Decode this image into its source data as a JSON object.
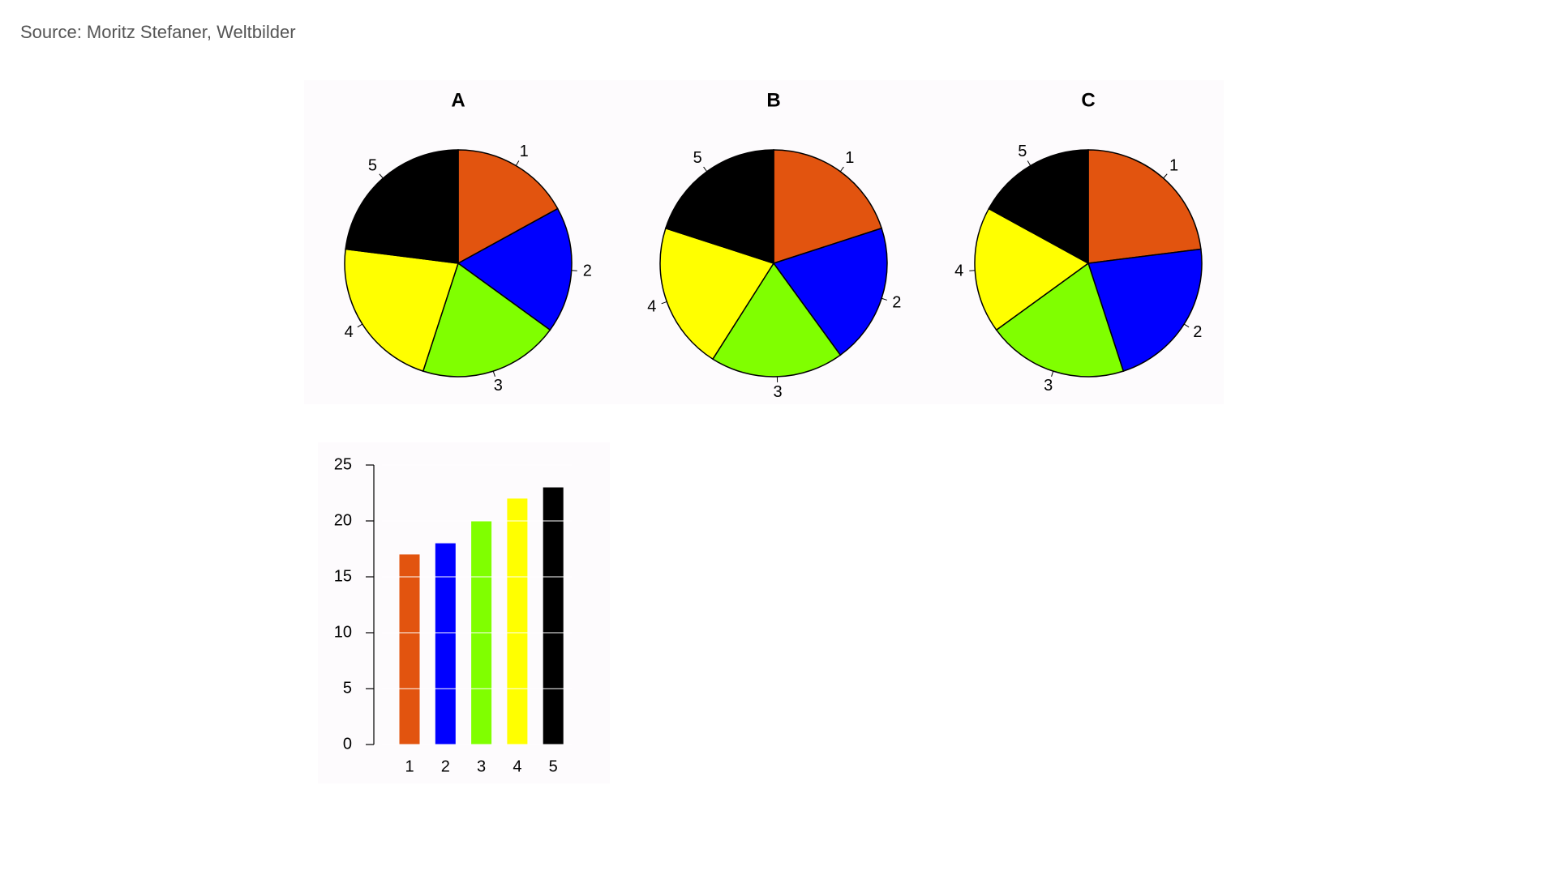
{
  "source": "Source: Moritz Stefaner, Weltbilder",
  "chart_data": [
    {
      "type": "pie",
      "title": "A",
      "categories": [
        "1",
        "2",
        "3",
        "4",
        "5"
      ],
      "values": [
        17,
        18,
        20,
        22,
        23
      ],
      "colors": [
        "#e2540f",
        "#0000ff",
        "#80ff00",
        "#ffff00",
        "#000000"
      ]
    },
    {
      "type": "pie",
      "title": "B",
      "categories": [
        "1",
        "2",
        "3",
        "4",
        "5"
      ],
      "values": [
        20,
        20,
        19,
        21,
        20
      ],
      "colors": [
        "#e2540f",
        "#0000ff",
        "#80ff00",
        "#ffff00",
        "#000000"
      ]
    },
    {
      "type": "pie",
      "title": "C",
      "categories": [
        "1",
        "2",
        "3",
        "4",
        "5"
      ],
      "values": [
        23,
        22,
        20,
        18,
        17
      ],
      "colors": [
        "#e2540f",
        "#0000ff",
        "#80ff00",
        "#ffff00",
        "#000000"
      ]
    },
    {
      "type": "bar",
      "categories": [
        "1",
        "2",
        "3",
        "4",
        "5"
      ],
      "values": [
        17,
        18,
        20,
        22,
        23
      ],
      "colors": [
        "#e2540f",
        "#0000ff",
        "#80ff00",
        "#ffff00",
        "#000000"
      ],
      "ylim": [
        0,
        25
      ],
      "yticks": [
        0,
        5,
        10,
        15,
        20,
        25
      ],
      "grid": true
    }
  ]
}
